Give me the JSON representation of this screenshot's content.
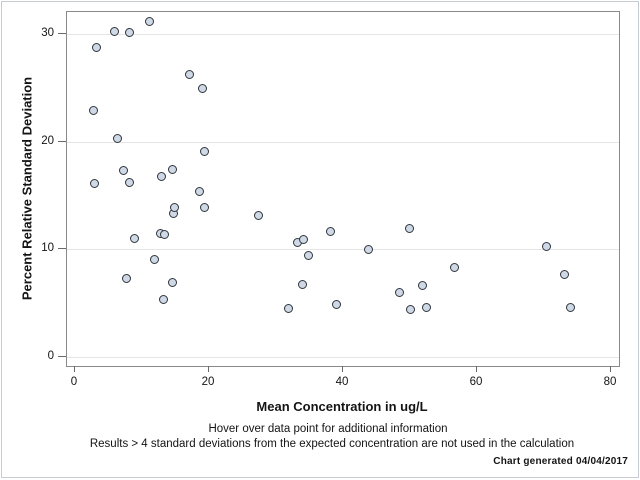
{
  "chart_data": {
    "type": "scatter",
    "title": "",
    "xlabel": "Mean Concentration in ug/L",
    "ylabel": "Percent Relative Standard Deviation",
    "xlim": [
      0,
      80
    ],
    "ylim": [
      0,
      30
    ],
    "x_ticks": [
      0,
      20,
      40,
      60,
      80
    ],
    "y_ticks": [
      0,
      10,
      20,
      30
    ],
    "grid": "horizontal-only",
    "legend": "none",
    "marker": {
      "shape": "circle",
      "fill": "#cfd9e6",
      "stroke": "#2f353d"
    },
    "points": [
      [
        3.2,
        28.7
      ],
      [
        2.8,
        22.9
      ],
      [
        2.9,
        16.1
      ],
      [
        5.9,
        30.2
      ],
      [
        6.3,
        20.3
      ],
      [
        7.2,
        17.3
      ],
      [
        7.7,
        7.3
      ],
      [
        8.1,
        30.1
      ],
      [
        8.2,
        16.2
      ],
      [
        8.9,
        11.0
      ],
      [
        11.1,
        31.2
      ],
      [
        11.8,
        9.1
      ],
      [
        12.7,
        11.5
      ],
      [
        12.9,
        16.8
      ],
      [
        13.2,
        5.3
      ],
      [
        13.4,
        11.4
      ],
      [
        14.5,
        17.4
      ],
      [
        14.6,
        6.9
      ],
      [
        14.7,
        13.3
      ],
      [
        14.8,
        13.9
      ],
      [
        17.1,
        26.2
      ],
      [
        18.6,
        15.4
      ],
      [
        19.1,
        24.9
      ],
      [
        19.3,
        13.9
      ],
      [
        19.4,
        19.1
      ],
      [
        27.4,
        13.1
      ],
      [
        31.9,
        4.5
      ],
      [
        33.2,
        10.6
      ],
      [
        33.9,
        6.7
      ],
      [
        34.1,
        10.9
      ],
      [
        34.9,
        9.4
      ],
      [
        38.1,
        11.7
      ],
      [
        39.0,
        4.9
      ],
      [
        43.8,
        10.0
      ],
      [
        48.4,
        6.0
      ],
      [
        49.9,
        11.9
      ],
      [
        50.0,
        4.4
      ],
      [
        51.9,
        6.6
      ],
      [
        52.5,
        4.6
      ],
      [
        56.6,
        8.3
      ],
      [
        70.3,
        10.3
      ],
      [
        73.1,
        7.7
      ],
      [
        73.9,
        4.6
      ]
    ]
  },
  "footnotes": {
    "hover_note": "Hover over data point for additional information",
    "exclusion_note": "Results > 4 standard deviations from the expected concentration are not used in the calculation",
    "generated_note": "Chart generated 04/04/2017"
  },
  "colors": {
    "marker_fill": "#cfd9e6",
    "marker_stroke": "#2f353d",
    "frame": "#898989",
    "gridline": "#e5e5e5",
    "text": "#141414",
    "outer_border": "#c6ccd4"
  }
}
